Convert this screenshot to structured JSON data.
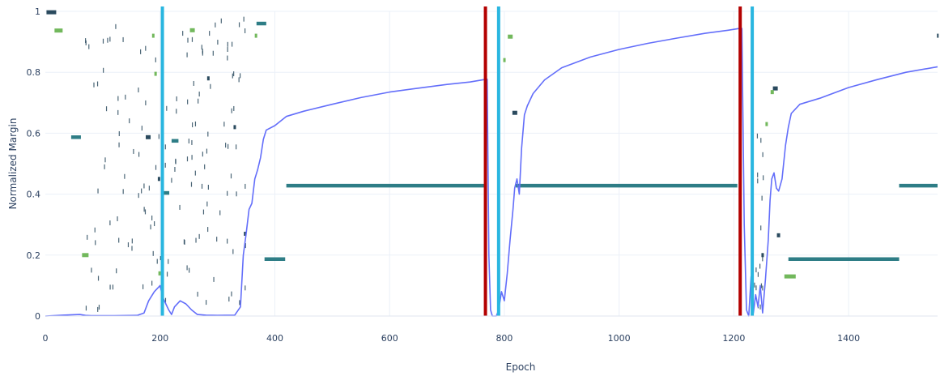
{
  "chart_data": {
    "type": "line",
    "title": "",
    "xlabel": "Epoch",
    "ylabel": "Normalized Margin",
    "xlim": [
      0,
      1555
    ],
    "ylim": [
      0,
      1
    ],
    "grid": true,
    "legend": "none",
    "x_ticks": [
      0,
      200,
      400,
      600,
      800,
      1000,
      1200,
      1400
    ],
    "y_ticks": [
      0,
      0.2,
      0.4,
      0.6,
      0.8,
      1
    ],
    "y_tick_labels": [
      "0",
      "0.2",
      "0.4",
      "0.6",
      "0.8",
      "1"
    ],
    "colors": {
      "margin_line": "#636efa",
      "red_marker": "#b30000",
      "cyan_marker": "#29b6e0",
      "teal_segment": "#2e7d86",
      "dark_marker": "#2a4a5e",
      "green_marker": "#72b85c",
      "grid": "#ebf0f8",
      "axis": "#2a3f5f"
    },
    "series": [
      {
        "points": [
          [
            0,
            0
          ],
          [
            30,
            0.003
          ],
          [
            60,
            0.005
          ],
          [
            70,
            0.002
          ],
          [
            80,
            0.001
          ],
          [
            120,
            0.001
          ],
          [
            160,
            0.002
          ],
          [
            172,
            0.01
          ],
          [
            180,
            0.05
          ],
          [
            190,
            0.08
          ],
          [
            200,
            0.1
          ],
          [
            205,
            0.06
          ],
          [
            210,
            0.04
          ],
          [
            215,
            0.02
          ],
          [
            220,
            0.005
          ],
          [
            225,
            0.03
          ],
          [
            235,
            0.05
          ],
          [
            245,
            0.04
          ],
          [
            255,
            0.02
          ],
          [
            265,
            0.005
          ],
          [
            280,
            0.003
          ],
          [
            300,
            0.002
          ],
          [
            330,
            0.003
          ],
          [
            340,
            0.03
          ],
          [
            345,
            0.2
          ],
          [
            350,
            0.27
          ],
          [
            355,
            0.35
          ],
          [
            360,
            0.37
          ],
          [
            365,
            0.45
          ],
          [
            370,
            0.48
          ],
          [
            375,
            0.52
          ],
          [
            380,
            0.58
          ],
          [
            385,
            0.61
          ],
          [
            400,
            0.625
          ],
          [
            420,
            0.655
          ],
          [
            450,
            0.672
          ],
          [
            500,
            0.695
          ],
          [
            550,
            0.717
          ],
          [
            600,
            0.735
          ],
          [
            650,
            0.748
          ],
          [
            700,
            0.76
          ],
          [
            740,
            0.768
          ],
          [
            765,
            0.776
          ],
          [
            770,
            0.777
          ],
          [
            773,
            0.2
          ],
          [
            776,
            0.02
          ],
          [
            779,
            0
          ],
          [
            786,
            0
          ],
          [
            790,
            0.02
          ],
          [
            795,
            0.08
          ],
          [
            800,
            0.05
          ],
          [
            805,
            0.14
          ],
          [
            810,
            0.25
          ],
          [
            815,
            0.35
          ],
          [
            818,
            0.42
          ],
          [
            822,
            0.45
          ],
          [
            826,
            0.4
          ],
          [
            830,
            0.55
          ],
          [
            835,
            0.66
          ],
          [
            840,
            0.69
          ],
          [
            850,
            0.73
          ],
          [
            870,
            0.775
          ],
          [
            900,
            0.815
          ],
          [
            950,
            0.85
          ],
          [
            1000,
            0.875
          ],
          [
            1050,
            0.895
          ],
          [
            1100,
            0.912
          ],
          [
            1150,
            0.928
          ],
          [
            1190,
            0.938
          ],
          [
            1210,
            0.944
          ],
          [
            1214,
            0.944
          ],
          [
            1218,
            0.3
          ],
          [
            1222,
            0.02
          ],
          [
            1226,
            0
          ],
          [
            1230,
            0.13
          ],
          [
            1234,
            0.01
          ],
          [
            1238,
            0.07
          ],
          [
            1242,
            0.03
          ],
          [
            1246,
            0.1
          ],
          [
            1250,
            0.01
          ],
          [
            1255,
            0.12
          ],
          [
            1260,
            0.25
          ],
          [
            1263,
            0.38
          ],
          [
            1266,
            0.45
          ],
          [
            1270,
            0.47
          ],
          [
            1274,
            0.42
          ],
          [
            1278,
            0.41
          ],
          [
            1284,
            0.45
          ],
          [
            1290,
            0.56
          ],
          [
            1295,
            0.62
          ],
          [
            1300,
            0.665
          ],
          [
            1315,
            0.695
          ],
          [
            1350,
            0.715
          ],
          [
            1400,
            0.75
          ],
          [
            1450,
            0.776
          ],
          [
            1500,
            0.8
          ],
          [
            1555,
            0.818
          ]
        ]
      }
    ],
    "vertical_markers": [
      {
        "x": 204,
        "color": "cyan"
      },
      {
        "x": 767,
        "color": "red"
      },
      {
        "x": 790,
        "color": "cyan"
      },
      {
        "x": 1211,
        "color": "red"
      },
      {
        "x": 1232,
        "color": "cyan"
      }
    ],
    "horizontal_segments": [
      {
        "x0": 420,
        "x1": 765,
        "y": 0.428
      },
      {
        "x0": 820,
        "x1": 1206,
        "y": 0.428
      },
      {
        "x0": 1488,
        "x1": 1555,
        "y": 0.428
      },
      {
        "x0": 382,
        "x1": 418,
        "y": 0.187
      },
      {
        "x0": 1295,
        "x1": 1488,
        "y": 0.187
      },
      {
        "x0": 368,
        "x1": 385,
        "y": 0.96
      },
      {
        "x0": 45,
        "x1": 62,
        "y": 0.587
      },
      {
        "x0": 220,
        "x1": 232,
        "y": 0.575
      },
      {
        "x0": 204,
        "x1": 216,
        "y": 0.404
      }
    ],
    "markers": [
      {
        "x": 2,
        "y": 0.997,
        "w": 12,
        "t": "dark"
      },
      {
        "x": 16,
        "y": 0.937,
        "w": 10,
        "t": "green"
      },
      {
        "x": 1288,
        "y": 0.13,
        "w": 14,
        "t": "green"
      },
      {
        "x": 64,
        "y": 0.2,
        "w": 8,
        "t": "green"
      },
      {
        "x": 252,
        "y": 0.938,
        "w": 6,
        "t": "green"
      },
      {
        "x": 806,
        "y": 0.917,
        "w": 6,
        "t": "green"
      },
      {
        "x": 814,
        "y": 0.667,
        "w": 6,
        "t": "dark"
      },
      {
        "x": 1268,
        "y": 0.747,
        "w": 6,
        "t": "dark"
      },
      {
        "x": 1264,
        "y": 0.735,
        "w": 4,
        "t": "green"
      },
      {
        "x": 1275,
        "y": 0.265,
        "w": 4,
        "t": "dark"
      },
      {
        "x": 175,
        "y": 0.587,
        "w": 6,
        "t": "dark"
      },
      {
        "x": 1554,
        "y": 0.92,
        "w": 2,
        "t": "dark"
      },
      {
        "x": 200,
        "y": 0.19,
        "w": 3,
        "t": "dark"
      },
      {
        "x": 365,
        "y": 0.92,
        "w": 3,
        "t": "green"
      },
      {
        "x": 282,
        "y": 0.78,
        "w": 3,
        "t": "dark"
      },
      {
        "x": 196,
        "y": 0.45,
        "w": 3,
        "t": "dark"
      },
      {
        "x": 197,
        "y": 0.14,
        "w": 3,
        "t": "green"
      },
      {
        "x": 1255,
        "y": 0.63,
        "w": 3,
        "t": "green"
      },
      {
        "x": 328,
        "y": 0.62,
        "w": 3,
        "t": "dark"
      },
      {
        "x": 346,
        "y": 0.27,
        "w": 3,
        "t": "dark"
      },
      {
        "x": 186,
        "y": 0.92,
        "w": 3,
        "t": "green"
      },
      {
        "x": 798,
        "y": 0.84,
        "w": 3,
        "t": "green"
      },
      {
        "x": 1248,
        "y": 0.2,
        "w": 3,
        "t": "dark"
      },
      {
        "x": 190,
        "y": 0.795,
        "w": 3,
        "t": "green"
      }
    ]
  }
}
